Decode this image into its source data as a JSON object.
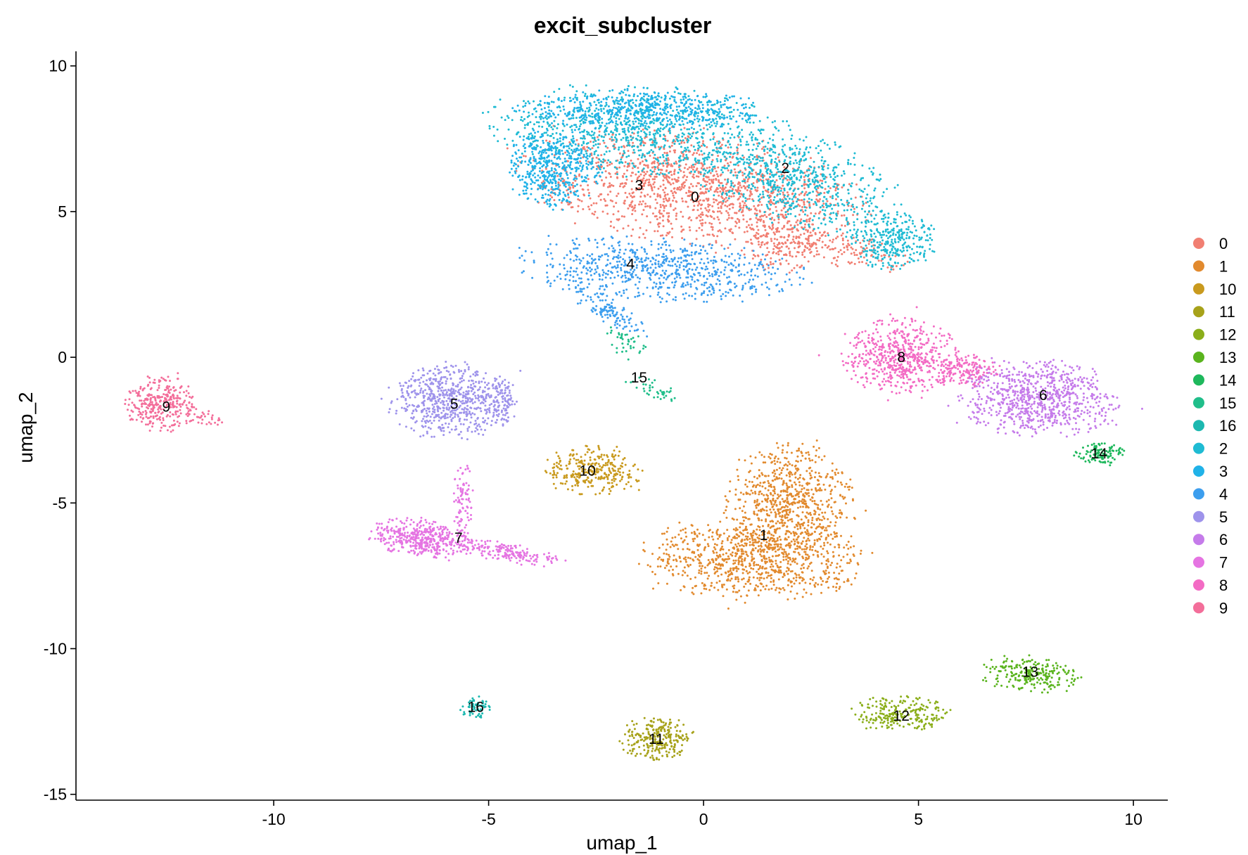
{
  "chart_data": {
    "type": "scatter",
    "title": "excit_subcluster",
    "xlabel": "umap_1",
    "ylabel": "umap_2",
    "xlim": [
      -14.6,
      10.8
    ],
    "ylim": [
      -15.2,
      10.5
    ],
    "xticks": [
      -10,
      -5,
      0,
      5,
      10
    ],
    "yticks": [
      10,
      5,
      0,
      -5,
      -10,
      -15
    ],
    "xtick_labels": [
      "-10",
      "-5",
      "0",
      "5",
      "10"
    ],
    "ytick_labels": [
      "10",
      "5",
      "0",
      "-5",
      "-10",
      "-15"
    ],
    "grid": false,
    "legend_position": "right",
    "legend": [
      "0",
      "1",
      "10",
      "11",
      "12",
      "13",
      "14",
      "15",
      "16",
      "2",
      "3",
      "4",
      "5",
      "6",
      "7",
      "8",
      "9"
    ],
    "colors": {
      "0": "#F8766D",
      "1": "#E58700",
      "10": "#C99800",
      "11": "#A3A500",
      "12": "#6BB100",
      "13": "#00BA38",
      "14": "#00BF7D",
      "15": "#00C0AF",
      "16": "#00BCD8",
      "2": "#00B0F6",
      "3": "#619CFF",
      "4": "#B983FF",
      "5": "#E76BF3",
      "6": "#FD61D1",
      "7": "#FF67A4",
      "8": "#F8766D",
      "9": "#F8766D"
    },
    "clusters": [
      {
        "label": "0",
        "center": [
          -0.2,
          5.5
        ],
        "color": "#F17F72",
        "regions": [
          {
            "cx": -0.2,
            "cy": 5.8,
            "rx": 3.4,
            "ry": 1.6,
            "n": 1400,
            "rot": -12
          },
          {
            "cx": 1.8,
            "cy": 4.0,
            "rx": 0.8,
            "ry": 0.9,
            "n": 200,
            "rot": 0
          },
          {
            "cx": 3.5,
            "cy": 3.6,
            "rx": 1.2,
            "ry": 0.5,
            "n": 120,
            "rot": -20
          }
        ]
      },
      {
        "label": "1",
        "center": [
          1.4,
          -6.1
        ],
        "color": "#E28A2E",
        "regions": [
          {
            "cx": 2.0,
            "cy": -4.9,
            "rx": 1.3,
            "ry": 1.6,
            "n": 700,
            "rot": 0
          },
          {
            "cx": 1.2,
            "cy": -6.9,
            "rx": 2.2,
            "ry": 1.2,
            "n": 900,
            "rot": 0
          }
        ]
      },
      {
        "label": "10",
        "center": [
          -2.7,
          -3.9
        ],
        "color": "#C99A1E",
        "regions": [
          {
            "cx": -2.6,
            "cy": -3.9,
            "rx": 0.95,
            "ry": 0.7,
            "n": 300,
            "rot": 0
          }
        ]
      },
      {
        "label": "11",
        "center": [
          -1.1,
          -13.1
        ],
        "color": "#A7A21A",
        "regions": [
          {
            "cx": -1.1,
            "cy": -13.1,
            "rx": 0.7,
            "ry": 0.65,
            "n": 260,
            "rot": 0
          }
        ]
      },
      {
        "label": "12",
        "center": [
          4.6,
          -12.3
        ],
        "color": "#8BAE1A",
        "regions": [
          {
            "cx": 4.6,
            "cy": -12.3,
            "rx": 1.0,
            "ry": 0.55,
            "n": 240,
            "rot": 0
          }
        ]
      },
      {
        "label": "13",
        "center": [
          7.6,
          -10.8
        ],
        "color": "#5AB41E",
        "regions": [
          {
            "cx": 7.6,
            "cy": -10.9,
            "rx": 1.0,
            "ry": 0.55,
            "n": 240,
            "rot": -8
          }
        ]
      },
      {
        "label": "14",
        "center": [
          9.2,
          -3.3
        ],
        "color": "#1EB85C",
        "regions": [
          {
            "cx": 9.2,
            "cy": -3.3,
            "rx": 0.5,
            "ry": 0.35,
            "n": 110,
            "rot": 0
          }
        ]
      },
      {
        "label": "15",
        "center": [
          -1.5,
          -0.7
        ],
        "color": "#20BE8A",
        "regions": [
          {
            "cx": -1.8,
            "cy": 0.5,
            "rx": 0.35,
            "ry": 0.6,
            "n": 40,
            "rot": 30
          },
          {
            "cx": -1.2,
            "cy": -1.1,
            "rx": 0.6,
            "ry": 0.25,
            "n": 40,
            "rot": -30
          }
        ]
      },
      {
        "label": "16",
        "center": [
          -5.3,
          -12.0
        ],
        "color": "#1CB8B0",
        "regions": [
          {
            "cx": -5.3,
            "cy": -12.0,
            "rx": 0.3,
            "ry": 0.35,
            "n": 60,
            "rot": 0
          }
        ]
      },
      {
        "label": "2",
        "center": [
          1.9,
          6.5
        ],
        "color": "#1FBBD3",
        "regions": [
          {
            "cx": -1.5,
            "cy": 7.8,
            "rx": 3.0,
            "ry": 1.3,
            "n": 900,
            "rot": -5
          },
          {
            "cx": 2.2,
            "cy": 6.0,
            "rx": 2.2,
            "ry": 1.3,
            "n": 700,
            "rot": -28
          },
          {
            "cx": 4.4,
            "cy": 4.0,
            "rx": 0.9,
            "ry": 0.8,
            "n": 300,
            "rot": 0
          }
        ]
      },
      {
        "label": "3",
        "center": [
          -1.5,
          5.9
        ],
        "color": "#20B2E8",
        "regions": [
          {
            "cx": -3.5,
            "cy": 6.5,
            "rx": 0.9,
            "ry": 1.2,
            "n": 500,
            "rot": 0
          },
          {
            "cx": -1.5,
            "cy": 8.5,
            "rx": 2.4,
            "ry": 0.6,
            "n": 500,
            "rot": 0
          }
        ]
      },
      {
        "label": "4",
        "center": [
          -1.7,
          3.2
        ],
        "color": "#3C9EEE",
        "regions": [
          {
            "cx": -1.0,
            "cy": 3.0,
            "rx": 2.8,
            "ry": 0.9,
            "n": 700,
            "rot": -5
          },
          {
            "cx": -2.2,
            "cy": 1.6,
            "rx": 0.9,
            "ry": 0.3,
            "n": 120,
            "rot": -45
          }
        ]
      },
      {
        "label": "5",
        "center": [
          -5.8,
          -1.6
        ],
        "color": "#9E93EB",
        "regions": [
          {
            "cx": -5.9,
            "cy": -1.5,
            "rx": 1.2,
            "ry": 1.1,
            "n": 650,
            "rot": 0
          },
          {
            "cx": -4.7,
            "cy": -1.5,
            "rx": 0.3,
            "ry": 0.7,
            "n": 80,
            "rot": 0
          }
        ]
      },
      {
        "label": "6",
        "center": [
          7.9,
          -1.3
        ],
        "color": "#C57BEA",
        "regions": [
          {
            "cx": 7.8,
            "cy": -1.4,
            "rx": 1.6,
            "ry": 1.1,
            "n": 800,
            "rot": -8
          }
        ]
      },
      {
        "label": "7",
        "center": [
          -5.7,
          -6.2
        ],
        "color": "#E574E2",
        "regions": [
          {
            "cx": -6.5,
            "cy": -6.2,
            "rx": 1.1,
            "ry": 0.55,
            "n": 450,
            "rot": -10
          },
          {
            "cx": -4.6,
            "cy": -6.7,
            "rx": 1.2,
            "ry": 0.3,
            "n": 180,
            "rot": -15
          },
          {
            "cx": -5.6,
            "cy": -4.9,
            "rx": 0.2,
            "ry": 1.1,
            "n": 80,
            "rot": 0
          }
        ]
      },
      {
        "label": "8",
        "center": [
          4.6,
          0.0
        ],
        "color": "#F36BC4",
        "regions": [
          {
            "cx": 4.6,
            "cy": 0.0,
            "rx": 1.1,
            "ry": 1.1,
            "n": 600,
            "rot": 0
          },
          {
            "cx": 6.1,
            "cy": -0.4,
            "rx": 0.7,
            "ry": 0.5,
            "n": 150,
            "rot": 0
          }
        ]
      },
      {
        "label": "9",
        "center": [
          -12.5,
          -1.7
        ],
        "color": "#F36E9A",
        "regions": [
          {
            "cx": -12.6,
            "cy": -1.6,
            "rx": 0.7,
            "ry": 0.8,
            "n": 320,
            "rot": 0
          },
          {
            "cx": -11.6,
            "cy": -2.1,
            "rx": 0.4,
            "ry": 0.2,
            "n": 30,
            "rot": -20
          }
        ]
      }
    ]
  }
}
